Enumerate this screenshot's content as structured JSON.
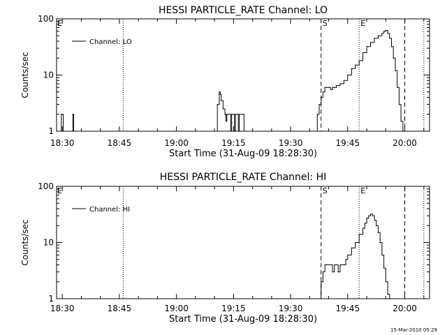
{
  "footer_timestamp": "15-Mar-2010 05:29",
  "chart_data": [
    {
      "type": "line",
      "title": "HESSI PARTICLE_RATE Channel: LO",
      "xlabel": "Start Time (31-Aug-09 18:28:30)",
      "ylabel": "Counts/sec",
      "y_scale": "log",
      "ylim": [
        1,
        100
      ],
      "xlim": [
        "18:28:30",
        "20:06:30"
      ],
      "x_ticks": [
        "18:30",
        "18:45",
        "19:00",
        "19:15",
        "19:30",
        "19:45",
        "20:00"
      ],
      "y_ticks": [
        "1",
        "10",
        "100"
      ],
      "legend": {
        "position": "top-left",
        "entries": [
          "Channel: LO"
        ]
      },
      "markers": [
        {
          "label": "E",
          "time": "18:28:30",
          "style": "label-only"
        },
        {
          "label": "",
          "time": "18:46:00",
          "style": "dotted"
        },
        {
          "label": "S",
          "time": "19:38:00",
          "style": "dashed"
        },
        {
          "label": "E",
          "time": "19:48:00",
          "style": "dotted"
        },
        {
          "label": "",
          "time": "20:00:00",
          "style": "dashed"
        },
        {
          "label": "",
          "time": "20:05:00",
          "style": "dotted"
        }
      ],
      "series": [
        {
          "name": "Channel: LO",
          "x": [
            "18:29:30",
            "18:29:45",
            "18:30:00",
            "18:30:15",
            "18:30:30",
            "18:32:30",
            "18:32:45",
            "18:33:00",
            "19:10:00",
            "19:10:45",
            "19:11:15",
            "19:11:30",
            "19:11:45",
            "19:12:15",
            "19:12:45",
            "19:13:00",
            "19:13:15",
            "19:13:30",
            "19:14:00",
            "19:14:15",
            "19:14:30",
            "19:15:00",
            "19:15:15",
            "19:15:30",
            "19:16:00",
            "19:16:15",
            "19:16:30",
            "19:17:00",
            "19:17:30",
            "19:17:45",
            "19:18:00",
            "19:20:00",
            "19:36:30",
            "19:37:00",
            "19:37:30",
            "19:38:00",
            "19:38:30",
            "19:39:00",
            "19:39:30",
            "19:40:00",
            "19:40:30",
            "19:41:00",
            "19:41:30",
            "19:42:00",
            "19:43:00",
            "19:44:00",
            "19:45:00",
            "19:46:00",
            "19:47:00",
            "19:48:00",
            "19:49:00",
            "19:50:00",
            "19:51:00",
            "19:52:00",
            "19:53:00",
            "19:54:00",
            "19:54:30",
            "19:55:00",
            "19:55:30",
            "19:56:00",
            "19:56:30",
            "19:57:00",
            "19:57:30",
            "19:58:00",
            "19:58:30",
            "19:59:00",
            "19:59:30",
            "20:00:00",
            "20:00:30"
          ],
          "values": [
            1,
            2,
            2,
            1,
            1,
            1,
            2,
            1,
            1,
            3,
            5,
            4.5,
            3.5,
            2.5,
            2,
            1.5,
            2,
            2,
            2,
            1,
            2,
            2,
            1,
            2,
            2,
            1,
            2,
            2,
            2,
            1,
            1,
            1,
            1,
            2,
            3,
            4,
            5,
            6,
            6,
            6,
            5.5,
            6,
            6,
            6.5,
            7,
            8,
            10,
            13,
            15,
            18,
            25,
            32,
            38,
            45,
            50,
            55,
            60,
            62,
            55,
            45,
            32,
            20,
            12,
            6,
            3,
            1.5,
            1,
            1,
            1
          ]
        }
      ]
    },
    {
      "type": "line",
      "title": "HESSI PARTICLE_RATE Channel: HI",
      "xlabel": "Start Time (31-Aug-09 18:28:30)",
      "ylabel": "Counts/sec",
      "y_scale": "log",
      "ylim": [
        1,
        100
      ],
      "xlim": [
        "18:28:30",
        "20:06:30"
      ],
      "x_ticks": [
        "18:30",
        "18:45",
        "19:00",
        "19:15",
        "19:30",
        "19:45",
        "20:00"
      ],
      "y_ticks": [
        "1",
        "10",
        "100"
      ],
      "legend": {
        "position": "top-left",
        "entries": [
          "Channel: HI"
        ]
      },
      "markers": [
        {
          "label": "E",
          "time": "18:28:30",
          "style": "label-only"
        },
        {
          "label": "",
          "time": "18:46:00",
          "style": "dotted"
        },
        {
          "label": "S",
          "time": "19:38:00",
          "style": "dashed"
        },
        {
          "label": "E",
          "time": "19:48:00",
          "style": "dotted"
        },
        {
          "label": "",
          "time": "20:00:00",
          "style": "dashed"
        },
        {
          "label": "",
          "time": "20:05:00",
          "style": "dotted"
        }
      ],
      "series": [
        {
          "name": "Channel: HI",
          "x": [
            "19:37:30",
            "19:38:00",
            "19:38:30",
            "19:39:00",
            "19:39:30",
            "19:40:00",
            "19:40:30",
            "19:41:00",
            "19:41:30",
            "19:42:00",
            "19:42:30",
            "19:43:00",
            "19:43:30",
            "19:44:00",
            "19:44:30",
            "19:45:00",
            "19:46:00",
            "19:47:00",
            "19:48:00",
            "19:49:00",
            "19:49:30",
            "19:50:00",
            "19:50:30",
            "19:51:00",
            "19:51:30",
            "19:52:00",
            "19:52:30",
            "19:53:00",
            "19:53:30",
            "19:54:00",
            "19:54:30",
            "19:55:00",
            "19:55:30",
            "19:56:00",
            "19:56:30"
          ],
          "values": [
            1,
            2,
            3,
            4,
            4,
            4,
            4,
            3,
            4,
            4,
            3,
            4,
            4,
            4,
            5,
            6,
            8,
            10,
            14,
            18,
            22,
            27,
            30,
            32,
            30,
            25,
            20,
            15,
            10,
            6,
            3.5,
            2,
            1.2,
            1,
            1
          ]
        }
      ]
    }
  ]
}
